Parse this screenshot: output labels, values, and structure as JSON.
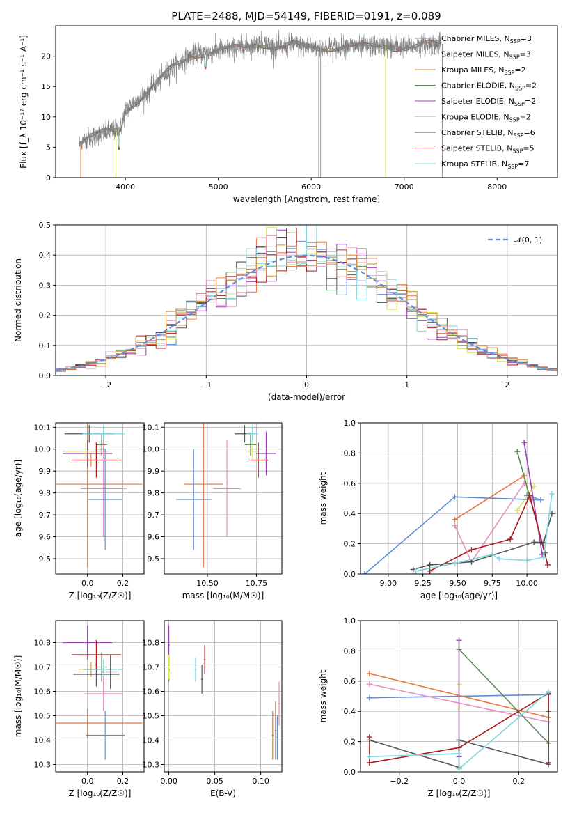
{
  "title": "PLATE=2488, MJD=54149, FIBERID=0191, z=0.089",
  "colors": {
    "Chabrier MILES": "#9aa7b0",
    "Salpeter MILES": "#e7743a",
    "Kroupa MILES": "#d9902f",
    "Chabrier ELODIE": "#5b8a5b",
    "Salpeter ELODIE": "#9a3fb5",
    "Kroupa ELODIE": "#d9e35a",
    "Chabrier STELIB": "#555555",
    "Salpeter STELIB": "#b0161a",
    "Kroupa STELIB": "#7fd8df"
  },
  "chart_data": [
    {
      "id": "spectrum",
      "type": "line",
      "xlabel": "wavelength [Angstrom, rest frame]",
      "ylabel": "Flux [f_λ 10⁻¹⁷ erg cm⁻² s⁻¹ A⁻¹]",
      "xlim": [
        3250,
        8650
      ],
      "ylim": [
        0,
        25
      ],
      "xticks": [
        "4000",
        "5000",
        "6000",
        "7000",
        "8000"
      ],
      "yticks": [
        "0",
        "5",
        "10",
        "15",
        "20"
      ],
      "grid": false,
      "legend_position": "top-right",
      "legend": [
        {
          "name": "Chabrier MILES",
          "nssp": "3"
        },
        {
          "name": "Salpeter MILES",
          "nssp": "3"
        },
        {
          "name": "Kroupa MILES",
          "nssp": "2"
        },
        {
          "name": "Chabrier ELODIE",
          "nssp": "2"
        },
        {
          "name": "Salpeter ELODIE",
          "nssp": "2"
        },
        {
          "name": "Kroupa ELODIE",
          "nssp": "2"
        },
        {
          "name": "Chabrier STELIB",
          "nssp": "6"
        },
        {
          "name": "Salpeter STELIB",
          "nssp": "5"
        },
        {
          "name": "Kroupa STELIB",
          "nssp": "7"
        }
      ],
      "data_color": "#808080",
      "continuum": [
        [
          3500,
          5.5
        ],
        [
          3600,
          6.5
        ],
        [
          3700,
          7.0
        ],
        [
          3800,
          7.5
        ],
        [
          3900,
          7.8
        ],
        [
          3950,
          8.0
        ],
        [
          4000,
          11.0
        ],
        [
          4100,
          12.5
        ],
        [
          4200,
          13.5
        ],
        [
          4300,
          15.0
        ],
        [
          4400,
          16.5
        ],
        [
          4500,
          18.0
        ],
        [
          4600,
          19.0
        ],
        [
          4700,
          20.0
        ],
        [
          4800,
          20.5
        ],
        [
          4900,
          20.5
        ],
        [
          5000,
          21.0
        ],
        [
          5100,
          21.0
        ],
        [
          5200,
          21.3
        ],
        [
          5300,
          21.5
        ],
        [
          5400,
          22.0
        ],
        [
          5500,
          22.0
        ],
        [
          5600,
          21.5
        ],
        [
          5700,
          21.5
        ],
        [
          5800,
          22.0
        ],
        [
          5900,
          21.5
        ],
        [
          6000,
          21.5
        ],
        [
          6100,
          21.3
        ],
        [
          6200,
          21.5
        ],
        [
          6300,
          21.5
        ],
        [
          6400,
          21.8
        ],
        [
          6500,
          21.5
        ],
        [
          6600,
          21.5
        ],
        [
          6700,
          21.5
        ],
        [
          6800,
          21.7
        ],
        [
          6900,
          21.5
        ],
        [
          7000,
          21.5
        ],
        [
          7100,
          21.5
        ],
        [
          7200,
          21.8
        ],
        [
          7300,
          22.0
        ],
        [
          7400,
          22.0
        ]
      ]
    },
    {
      "id": "residuals",
      "type": "histogram",
      "xlabel": "(data-model)/error",
      "ylabel": "Normed distribution",
      "xlim": [
        -2.5,
        2.5
      ],
      "ylim": [
        0,
        0.5
      ],
      "xticks": [
        "−2",
        "−1",
        "0",
        "1",
        "2"
      ],
      "yticks": [
        "0.0",
        "0.1",
        "0.2",
        "0.3",
        "0.4",
        "0.5"
      ],
      "grid": true,
      "legend_position": "top-right",
      "legend": [
        {
          "name": "𝒩(0, 1)",
          "color": "#5b8fd9",
          "style": "dashed"
        }
      ],
      "bin_width": 0.1
    },
    {
      "id": "age_vs_Z",
      "type": "errorbar",
      "xlabel": "Z [log₁₀(Z/Z☉)]",
      "ylabel": "age  [log₁₀(age/yr)]",
      "xlim": [
        -0.18,
        0.32
      ],
      "ylim": [
        9.43,
        10.12
      ],
      "xticks": [
        "0.0",
        "0.2"
      ],
      "yticks": [
        "9.5",
        "9.6",
        "9.7",
        "9.8",
        "9.9",
        "10.0",
        "10.1"
      ],
      "grid": true,
      "points": [
        {
          "model": "Chabrier MILES",
          "x": 0.07,
          "xerr": 0.03,
          "y": 10.0,
          "yerr": 0.04
        },
        {
          "model": "Salpeter MILES",
          "x": 0.0,
          "xerr": 0.31,
          "y": 9.84,
          "yerr": 0.38
        },
        {
          "model": "Kroupa MILES",
          "x": 0.02,
          "xerr": 0.03,
          "y": 9.95,
          "yerr": 0.03
        },
        {
          "model": "Chabrier ELODIE",
          "x": 0.08,
          "xerr": 0.03,
          "y": 10.02,
          "yerr": 0.05
        },
        {
          "model": "Salpeter ELODIE",
          "x": 0.0,
          "xerr": 0.14,
          "y": 9.98,
          "yerr": 0.06
        },
        {
          "model": "Kroupa ELODIE",
          "x": -0.01,
          "xerr": 0.13,
          "y": 9.99,
          "yerr": 0.04
        },
        {
          "model": "Chabrier STELIB",
          "x": 0.01,
          "xerr": 0.14,
          "y": 10.07,
          "yerr": 0.04
        },
        {
          "model": "Salpeter STELIB",
          "x": 0.05,
          "xerr": 0.14,
          "y": 9.95,
          "yerr": 0.08
        },
        {
          "model": "Kroupa STELIB",
          "x": 0.09,
          "xerr": 0.12,
          "y": 10.07,
          "yerr": 0.04
        },
        {
          "model": "Extra A",
          "color": "#e68fc0",
          "x": 0.09,
          "xerr": 0.13,
          "y": 9.82,
          "yerr": 0.22
        },
        {
          "model": "Extra B",
          "color": "#5b8fd9",
          "x": 0.1,
          "xerr": 0.1,
          "y": 9.77,
          "yerr": 0.23
        }
      ]
    },
    {
      "id": "age_vs_mass",
      "type": "errorbar",
      "xlabel": "mass [log₁₀(M/M☉)]",
      "xlim": [
        10.28,
        10.88
      ],
      "ylim": [
        9.43,
        10.12
      ],
      "xticks": [
        "10.50",
        "10.75"
      ],
      "yticks": [
        "9.5",
        "9.6",
        "9.7",
        "9.8",
        "9.9",
        "10.0",
        "10.1"
      ],
      "grid": true,
      "points": [
        {
          "model": "Salpeter MILES",
          "x": 10.48,
          "xerr": 0.1,
          "y": 9.84,
          "yerr": 0.38
        },
        {
          "model": "Chabrier ELODIE",
          "x": 10.72,
          "xerr": 0.03,
          "y": 10.02,
          "yerr": 0.05
        },
        {
          "model": "Salpeter ELODIE",
          "x": 10.8,
          "xerr": 0.05,
          "y": 9.98,
          "yerr": 0.1
        },
        {
          "model": "Kroupa ELODIE",
          "x": 10.73,
          "xerr": 0.03,
          "y": 9.99,
          "yerr": 0.04
        },
        {
          "model": "Chabrier STELIB",
          "x": 10.69,
          "xerr": 0.05,
          "y": 10.07,
          "yerr": 0.04
        },
        {
          "model": "Salpeter STELIB",
          "x": 10.76,
          "xerr": 0.05,
          "y": 9.95,
          "yerr": 0.08
        },
        {
          "model": "Kroupa STELIB",
          "x": 10.73,
          "xerr": 0.03,
          "y": 10.07,
          "yerr": 0.04
        },
        {
          "model": "Extra A",
          "color": "#e68fc0",
          "x": 10.6,
          "xerr": 0.07,
          "y": 9.82,
          "yerr": 0.22
        },
        {
          "model": "Extra B",
          "color": "#5b8fd9",
          "x": 10.43,
          "xerr": 0.09,
          "y": 9.77,
          "yerr": 0.23
        }
      ]
    },
    {
      "id": "mass_weight_vs_age",
      "type": "line",
      "xlabel": "age  [log₁₀(age/yr)]",
      "ylabel": "mass weight",
      "xlim": [
        8.8,
        10.22
      ],
      "ylim": [
        0,
        1.0
      ],
      "xticks": [
        "9.00",
        "9.25",
        "9.50",
        "9.75",
        "10.00"
      ],
      "yticks": [
        "0.0",
        "0.2",
        "0.4",
        "0.6",
        "0.8",
        "1.0"
      ],
      "grid": true,
      "series": [
        {
          "color": "#5b8fd9",
          "points": [
            [
              8.83,
              0.0
            ],
            [
              9.48,
              0.51
            ],
            [
              10.1,
              0.49
            ],
            [
              10.0,
              0.52
            ]
          ]
        },
        {
          "color": "#e68fc0",
          "points": [
            [
              9.48,
              0.32
            ],
            [
              9.6,
              0.08
            ],
            [
              9.98,
              0.6
            ]
          ]
        },
        {
          "color": "#e7743a",
          "points": [
            [
              9.48,
              0.36
            ],
            [
              9.98,
              0.65
            ],
            [
              10.02,
              0.5
            ]
          ]
        },
        {
          "color": "#d9e35a",
          "points": [
            [
              9.93,
              0.42
            ],
            [
              10.05,
              0.58
            ]
          ]
        },
        {
          "color": "#5b8a5b",
          "points": [
            [
              9.93,
              0.81
            ],
            [
              10.13,
              0.14
            ]
          ]
        },
        {
          "color": "#9a3fb5",
          "points": [
            [
              9.98,
              0.87
            ],
            [
              10.11,
              0.13
            ]
          ]
        },
        {
          "color": "#b0161a",
          "points": [
            [
              9.3,
              0.02
            ],
            [
              9.6,
              0.16
            ],
            [
              9.88,
              0.23
            ],
            [
              10.02,
              0.52
            ],
            [
              10.15,
              0.06
            ]
          ]
        },
        {
          "color": "#555555",
          "points": [
            [
              9.18,
              0.03
            ],
            [
              9.3,
              0.06
            ],
            [
              9.6,
              0.08
            ],
            [
              10.05,
              0.21
            ],
            [
              10.12,
              0.21
            ],
            [
              10.18,
              0.4
            ]
          ]
        },
        {
          "color": "#7fd8df",
          "points": [
            [
              9.2,
              0.02
            ],
            [
              9.48,
              0.07
            ],
            [
              9.75,
              0.13
            ],
            [
              9.8,
              0.1
            ],
            [
              10.0,
              0.09
            ],
            [
              10.12,
              0.11
            ],
            [
              10.18,
              0.53
            ]
          ]
        }
      ]
    },
    {
      "id": "mass_vs_Z",
      "type": "errorbar",
      "xlabel": "Z [log₁₀(Z/Z☉)]",
      "ylabel": "mass [log₁₀(M/M☉)]",
      "xlim": [
        -0.18,
        0.32
      ],
      "ylim": [
        10.27,
        10.89
      ],
      "xticks": [
        "0.0",
        "0.2"
      ],
      "yticks": [
        "10.3",
        "10.4",
        "10.5",
        "10.6",
        "10.7",
        "10.8"
      ],
      "grid": true,
      "points": [
        {
          "model": "Salpeter MILES",
          "x": 0.0,
          "xerr": 0.31,
          "y": 10.47,
          "yerr": 0.06
        },
        {
          "model": "Kroupa MILES",
          "x": 0.02,
          "xerr": 0.05,
          "y": 10.69,
          "yerr": 0.03
        },
        {
          "model": "Chabrier ELODIE",
          "x": 0.08,
          "xerr": 0.03,
          "y": 10.7,
          "yerr": 0.06
        },
        {
          "model": "Salpeter ELODIE",
          "x": 0.0,
          "xerr": 0.14,
          "y": 10.8,
          "yerr": 0.07
        },
        {
          "model": "Kroupa ELODIE",
          "x": 0.05,
          "xerr": 0.1,
          "y": 10.69,
          "yerr": 0.03
        },
        {
          "model": "Chabrier STELIB",
          "x": 0.05,
          "xerr": 0.13,
          "y": 10.67,
          "yerr": 0.05
        },
        {
          "model": "Salpeter STELIB",
          "x": 0.05,
          "xerr": 0.14,
          "y": 10.75,
          "yerr": 0.06
        },
        {
          "model": "Kroupa STELIB",
          "x": 0.09,
          "xerr": 0.11,
          "y": 10.69,
          "yerr": 0.04
        },
        {
          "model": "Extra C",
          "color": "#4a4a4a",
          "x": 0.13,
          "xerr": 0.05,
          "y": 10.68,
          "yerr": 0.07
        },
        {
          "model": "Extra A",
          "color": "#e68fc0",
          "x": 0.09,
          "xerr": 0.11,
          "y": 10.59,
          "yerr": 0.07
        },
        {
          "model": "Extra B",
          "color": "#5b8fd9",
          "x": 0.1,
          "xerr": 0.11,
          "y": 10.42,
          "yerr": 0.1
        }
      ]
    },
    {
      "id": "mass_vs_ebv",
      "type": "errorbar",
      "xlabel": "E(B-V)",
      "xlim": [
        -0.005,
        0.123
      ],
      "ylim": [
        10.27,
        10.89
      ],
      "xticks": [
        "0.00",
        "0.05",
        "0.10"
      ],
      "yticks": [
        "10.3",
        "10.4",
        "10.5",
        "10.6",
        "10.7",
        "10.8"
      ],
      "grid": true,
      "points": [
        {
          "model": "Salpeter MILES",
          "x": 0.113,
          "xerr": 0.001,
          "y": 10.42,
          "yerr": 0.1
        },
        {
          "model": "Kroupa MILES",
          "x": 0.116,
          "xerr": 0.001,
          "y": 10.44,
          "yerr": 0.12
        },
        {
          "model": "Chabrier ELODIE",
          "x": 0.0,
          "xerr": 0.001,
          "y": 10.69,
          "yerr": 0.05
        },
        {
          "model": "Salpeter ELODIE",
          "x": 0.0,
          "xerr": 0.001,
          "y": 10.79,
          "yerr": 0.08
        },
        {
          "model": "Kroupa ELODIE",
          "x": 0.0,
          "xerr": 0.001,
          "y": 10.7,
          "yerr": 0.05
        },
        {
          "model": "Chabrier STELIB",
          "x": 0.036,
          "xerr": 0.001,
          "y": 10.65,
          "yerr": 0.06
        },
        {
          "model": "Salpeter STELIB",
          "x": 0.039,
          "xerr": 0.001,
          "y": 10.73,
          "yerr": 0.06
        },
        {
          "model": "Kroupa STELIB",
          "x": 0.029,
          "xerr": 0.001,
          "y": 10.69,
          "yerr": 0.05
        },
        {
          "model": "Extra A",
          "color": "#e68fc0",
          "x": 0.12,
          "xerr": 0.001,
          "y": 10.55,
          "yerr": 0.09
        },
        {
          "model": "Extra B",
          "color": "#5b8fd9",
          "x": 0.118,
          "xerr": 0.001,
          "y": 10.41,
          "yerr": 0.09
        }
      ]
    },
    {
      "id": "mass_weight_vs_Z",
      "type": "line",
      "xlabel": "Z [log₁₀(Z/Z☉)]",
      "ylabel": "mass weight",
      "xlim": [
        -0.33,
        0.33
      ],
      "ylim": [
        0,
        1.0
      ],
      "xticks": [
        "−0.2",
        "0.0",
        "0.2"
      ],
      "yticks": [
        "0.0",
        "0.2",
        "0.4",
        "0.6",
        "0.8",
        "1.0"
      ],
      "grid": true,
      "series": [
        {
          "color": "#5b8fd9",
          "points": [
            [
              -0.3,
              0.49
            ],
            [
              0.3,
              0.51
            ]
          ]
        },
        {
          "color": "#e68fc0",
          "points": [
            [
              -0.3,
              0.58
            ],
            [
              0.3,
              0.33
            ]
          ]
        },
        {
          "color": "#e7743a",
          "points": [
            [
              -0.3,
              0.65
            ],
            [
              0.3,
              0.36
            ]
          ]
        },
        {
          "color": "#d9e35a",
          "points": [
            [
              0.0,
              0.42
            ],
            [
              0.0,
              0.58
            ]
          ]
        },
        {
          "color": "#5b8a5b",
          "points": [
            [
              0.0,
              0.81
            ],
            [
              0.3,
              0.19
            ]
          ]
        },
        {
          "color": "#9a3fb5",
          "points": [
            [
              0.0,
              0.87
            ],
            [
              0.0,
              0.1
            ]
          ]
        },
        {
          "color": "#b0161a",
          "points": [
            [
              -0.3,
              0.23
            ],
            [
              -0.3,
              0.06
            ],
            [
              0.0,
              0.16
            ],
            [
              0.3,
              0.52
            ],
            [
              0.3,
              0.06
            ]
          ]
        },
        {
          "color": "#555555",
          "points": [
            [
              -0.3,
              0.21
            ],
            [
              0.0,
              0.03
            ],
            [
              0.0,
              0.21
            ],
            [
              0.3,
              0.05
            ],
            [
              0.3,
              0.4
            ]
          ]
        },
        {
          "color": "#7fd8df",
          "points": [
            [
              -0.3,
              0.1
            ],
            [
              0.0,
              0.12
            ],
            [
              0.0,
              0.02
            ],
            [
              0.3,
              0.53
            ]
          ]
        }
      ]
    }
  ]
}
